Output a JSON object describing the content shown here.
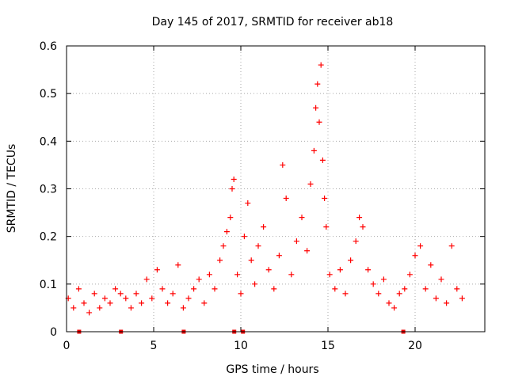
{
  "chart_data": {
    "type": "scatter",
    "title": "Day 145 of 2017, SRMTID for receiver ab18",
    "xlabel": "GPS time / hours",
    "ylabel": "SRMTID / TECUs",
    "xlim": [
      0,
      24
    ],
    "ylim": [
      0,
      0.6
    ],
    "x_ticks": [
      "0",
      "5",
      "10",
      "15",
      "20"
    ],
    "y_ticks": [
      "0",
      "0.1",
      "0.2",
      "0.3",
      "0.4",
      "0.5",
      "0.6"
    ],
    "grid": true,
    "marker": "plus",
    "series": [
      {
        "name": "SRMTID",
        "color": "#ff0000",
        "x": [
          0.1,
          0.4,
          0.7,
          1.0,
          1.3,
          1.6,
          1.9,
          2.2,
          2.5,
          2.8,
          3.1,
          3.4,
          3.7,
          4.0,
          4.3,
          4.6,
          4.9,
          5.2,
          5.5,
          5.8,
          6.1,
          6.4,
          6.7,
          7.0,
          7.3,
          7.6,
          7.9,
          8.2,
          8.5,
          8.8,
          9.0,
          9.2,
          9.4,
          9.5,
          9.6,
          9.8,
          10.0,
          10.2,
          10.4,
          10.6,
          10.8,
          11.0,
          11.3,
          11.6,
          11.9,
          12.2,
          12.4,
          12.6,
          12.9,
          13.2,
          13.5,
          13.8,
          14.0,
          14.2,
          14.3,
          14.4,
          14.5,
          14.6,
          14.7,
          14.8,
          14.9,
          15.1,
          15.4,
          15.7,
          16.0,
          16.3,
          16.6,
          16.8,
          17.0,
          17.3,
          17.6,
          17.9,
          18.2,
          18.5,
          18.8,
          19.1,
          19.4,
          19.7,
          20.0,
          20.3,
          20.6,
          20.9,
          21.2,
          21.5,
          21.8,
          22.1,
          22.4,
          22.7
        ],
        "y": [
          0.07,
          0.05,
          0.09,
          0.06,
          0.04,
          0.08,
          0.05,
          0.07,
          0.06,
          0.09,
          0.08,
          0.07,
          0.05,
          0.08,
          0.06,
          0.11,
          0.07,
          0.13,
          0.09,
          0.06,
          0.08,
          0.14,
          0.05,
          0.07,
          0.09,
          0.11,
          0.06,
          0.12,
          0.09,
          0.15,
          0.18,
          0.21,
          0.24,
          0.3,
          0.32,
          0.12,
          0.08,
          0.2,
          0.27,
          0.15,
          0.1,
          0.18,
          0.22,
          0.13,
          0.09,
          0.16,
          0.35,
          0.28,
          0.12,
          0.19,
          0.24,
          0.17,
          0.31,
          0.38,
          0.47,
          0.52,
          0.44,
          0.56,
          0.36,
          0.28,
          0.22,
          0.12,
          0.09,
          0.13,
          0.08,
          0.15,
          0.19,
          0.24,
          0.22,
          0.13,
          0.1,
          0.08,
          0.11,
          0.06,
          0.05,
          0.08,
          0.09,
          0.12,
          0.16,
          0.18,
          0.09,
          0.14,
          0.07,
          0.11,
          0.06,
          0.18,
          0.09,
          0.07
        ]
      }
    ],
    "axis_markers": {
      "description": "small markers on x-axis indicating data gaps",
      "x": [
        0.7,
        3.1,
        6.7,
        9.6,
        10.1,
        19.3
      ]
    }
  }
}
